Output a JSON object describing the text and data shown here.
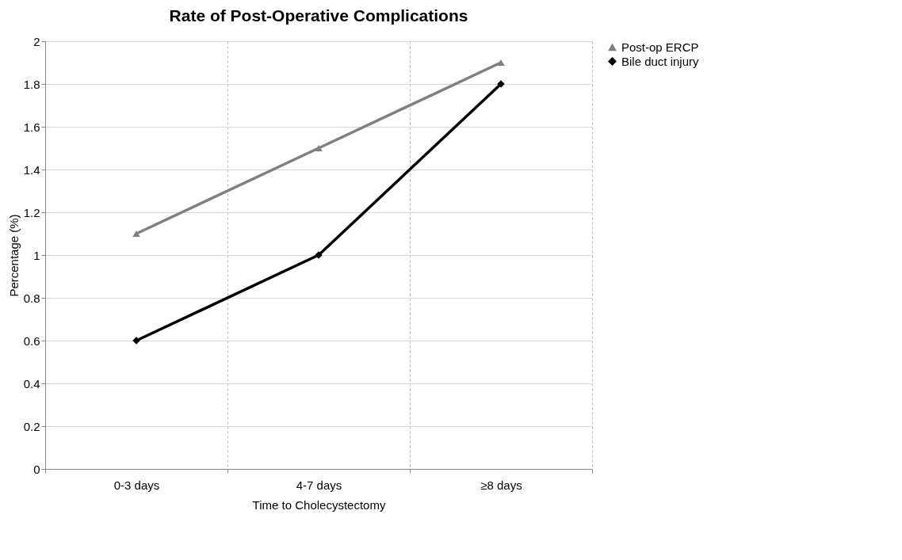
{
  "chart_data": {
    "type": "line",
    "title": "Rate of Post-Operative Complications",
    "xlabel": "Time to Cholecystectomy",
    "ylabel": "Percentage (%)",
    "categories": [
      "0-3 days",
      "4-7 days",
      "≥8 days"
    ],
    "series": [
      {
        "name": "Post-op ERCP",
        "color": "#808080",
        "marker": "triangle",
        "values": [
          1.1,
          1.5,
          1.9
        ]
      },
      {
        "name": "Bile duct injury",
        "color": "#000000",
        "marker": "diamond",
        "values": [
          0.6,
          1.0,
          1.8
        ]
      }
    ],
    "ylim": [
      0,
      2
    ],
    "yticks": [
      0,
      0.2,
      0.4,
      0.6,
      0.8,
      1,
      1.2,
      1.4,
      1.6,
      1.8,
      2
    ],
    "grid": true,
    "legend": "right",
    "line_style": "solid"
  }
}
